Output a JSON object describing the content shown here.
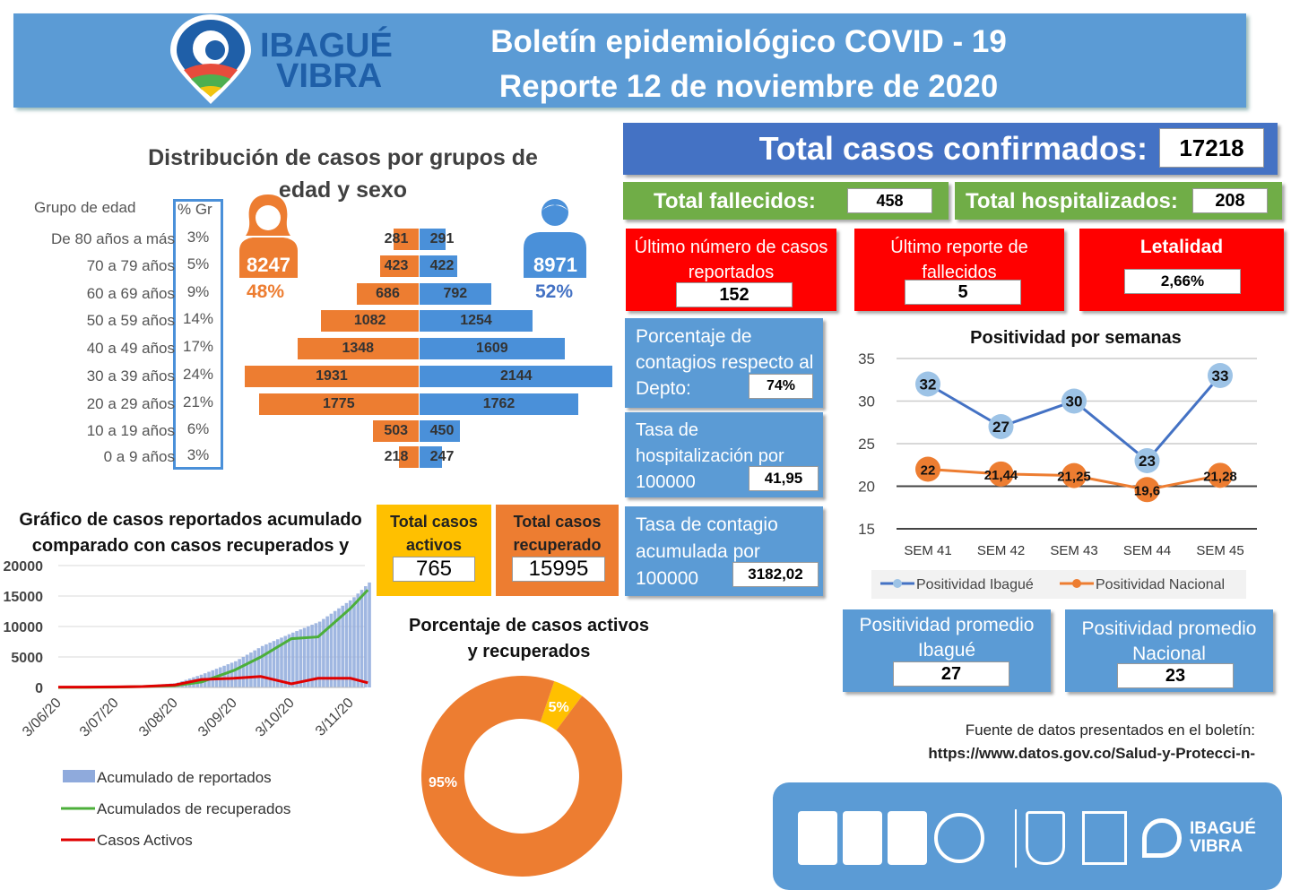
{
  "header": {
    "logo_line1": "IBAGUÉ",
    "logo_line2": "VIBRA",
    "title_line1": "Boletín epidemiológico COVID - 19",
    "title_line2": "Reporte 12 de noviembre de 2020"
  },
  "colors": {
    "banner": "#5b9bd5",
    "female": "#ed7d31",
    "male": "#4a90d9",
    "red": "#ff0000",
    "green": "#70ad47",
    "dark_blue": "#4472c4",
    "yellow": "#ffc000"
  },
  "age_sex": {
    "title_line1": "Distribución de casos por grupos de",
    "title_line2": "edad y sexo",
    "col_group": "Grupo de edad",
    "col_pct": "% Gr",
    "female_total": "8247",
    "female_pct": "48%",
    "male_total": "8971",
    "male_pct": "52%",
    "icons": {
      "female": "woman-icon",
      "male": "man-icon"
    }
  },
  "totals": {
    "confirmed_label": "Total casos confirmados:",
    "confirmed_value": "17218",
    "deaths_label": "Total fallecidos:",
    "deaths_value": "458",
    "hosp_label": "Total hospitalizados:",
    "hosp_value": "208",
    "last_cases_label": "Último número de casos reportados",
    "last_cases_value": "152",
    "last_deaths_label": "Último reporte de fallecidos",
    "last_deaths_value": "5",
    "lethality_label": "Letalidad",
    "lethality_value": "2,66%",
    "pct_depto_label": "Porcentaje de contagios respecto al Depto:",
    "pct_depto_value": "74%",
    "hosp_rate_label": "Tasa de hospitalización por 100000",
    "hosp_rate_value": "41,95",
    "contagion_rate_label": "Tasa de contagio acumulada por 100000",
    "contagion_rate_value": "3182,02",
    "active_label": "Total casos activos",
    "active_value": "765",
    "recovered_label": "Total casos recuperado",
    "recovered_value": "15995",
    "avg_ibague_label": "Positividad promedio Ibagué",
    "avg_ibague_value": "27",
    "avg_nacional_label": "Positividad promedio Nacional",
    "avg_nacional_value": "23"
  },
  "source": {
    "label": "Fuente de datos presentados en el boletín:",
    "url": "https://www.datos.gov.co/Salud-y-Protecci-n-"
  },
  "chart_data": [
    {
      "type": "bar",
      "orientation": "horizontal-pyramid",
      "categories": [
        "De 80 años a más",
        "70 a 79 años",
        "60 a 69 años",
        "50 a 59 años",
        "40 a 49 años",
        "30 a 39 años",
        "20 a 29 años",
        "10 a 19 años",
        "0 a 9 años"
      ],
      "group_pct": [
        "3%",
        "5%",
        "9%",
        "14%",
        "17%",
        "24%",
        "21%",
        "6%",
        "3%"
      ],
      "series": [
        {
          "values": [
            281,
            423,
            686,
            1082,
            1348,
            1931,
            1775,
            503,
            218
          ],
          "color": "#ed7d31"
        },
        {
          "values": [
            291,
            422,
            792,
            1254,
            1609,
            2144,
            1762,
            450,
            247
          ],
          "color": "#4a90d9"
        }
      ]
    },
    {
      "type": "line",
      "title_line1": "Gráfico de casos reportados acumulado",
      "title_line2": "comparado con casos recuperados y",
      "x": [
        "2020-06-03",
        "2020-06-17",
        "2020-07-03",
        "2020-07-17",
        "2020-08-03",
        "2020-08-17",
        "2020-09-03",
        "2020-09-17",
        "2020-10-03",
        "2020-10-17",
        "2020-11-03",
        "2020-11-12"
      ],
      "x_tick_labels": [
        "3/06/20",
        "3/07/20",
        "3/08/20",
        "3/09/20",
        "3/10/20",
        "3/11/20"
      ],
      "y_tick_labels": [
        "20000",
        "15000",
        "10000",
        "5000",
        "0"
      ],
      "ylim": [
        0,
        20000
      ],
      "grid": true,
      "legend_position": "bottom",
      "series": [
        {
          "name": "Acumulado de reportados",
          "kind": "bar",
          "color": "#8faadc",
          "values": [
            50,
            80,
            150,
            300,
            700,
            2200,
            4300,
            6800,
            9000,
            10800,
            14500,
            17218
          ]
        },
        {
          "name": "Acumulados de recuperados",
          "kind": "line",
          "color": "#4caf3a",
          "values": [
            0,
            20,
            60,
            150,
            300,
            900,
            2800,
            5000,
            8000,
            8300,
            13000,
            15995
          ]
        },
        {
          "name": "Casos Activos",
          "kind": "line",
          "color": "#e00000",
          "values": [
            50,
            60,
            90,
            150,
            400,
            1300,
            1500,
            1800,
            600,
            1500,
            1500,
            765
          ]
        }
      ]
    },
    {
      "type": "pie",
      "donut": true,
      "title_line1": "Porcentaje de casos activos",
      "title_line2": "y recuperados",
      "slices": [
        {
          "label": "5%",
          "value": 5,
          "color": "#ffc000"
        },
        {
          "label": "95%",
          "value": 95,
          "color": "#ed7d31"
        }
      ]
    },
    {
      "type": "line",
      "title": "Positividad por semanas",
      "categories": [
        "SEM 41",
        "SEM 42",
        "SEM 43",
        "SEM 44",
        "SEM 45"
      ],
      "y_tick_labels": [
        "35",
        "30",
        "25",
        "20",
        "15"
      ],
      "ylim": [
        15,
        35
      ],
      "grid": true,
      "legend_position": "bottom",
      "series": [
        {
          "name": "Positividad Ibagué",
          "color": "#4472c4",
          "marker": "#9dc3e6",
          "values": [
            32,
            27,
            30,
            23,
            33
          ],
          "labels": [
            "32",
            "27",
            "30",
            "23",
            "33"
          ]
        },
        {
          "name": "Positividad Nacional",
          "color": "#ed7d31",
          "marker": "#ed7d31",
          "values": [
            22,
            21.44,
            21.25,
            19.6,
            21.28
          ],
          "labels": [
            "22",
            "21,44",
            "21,25",
            "19,6",
            "21,28"
          ]
        }
      ]
    }
  ],
  "footer": {
    "logos": [
      "icontec-logo",
      "icontec-logo",
      "icontec-logo",
      "iqnet-logo",
      "ibague-coat-of-arms",
      "conservatorio-logo",
      "ibague-vibra-logo"
    ],
    "logo_text": "IBAGUÉ VIBRA"
  }
}
